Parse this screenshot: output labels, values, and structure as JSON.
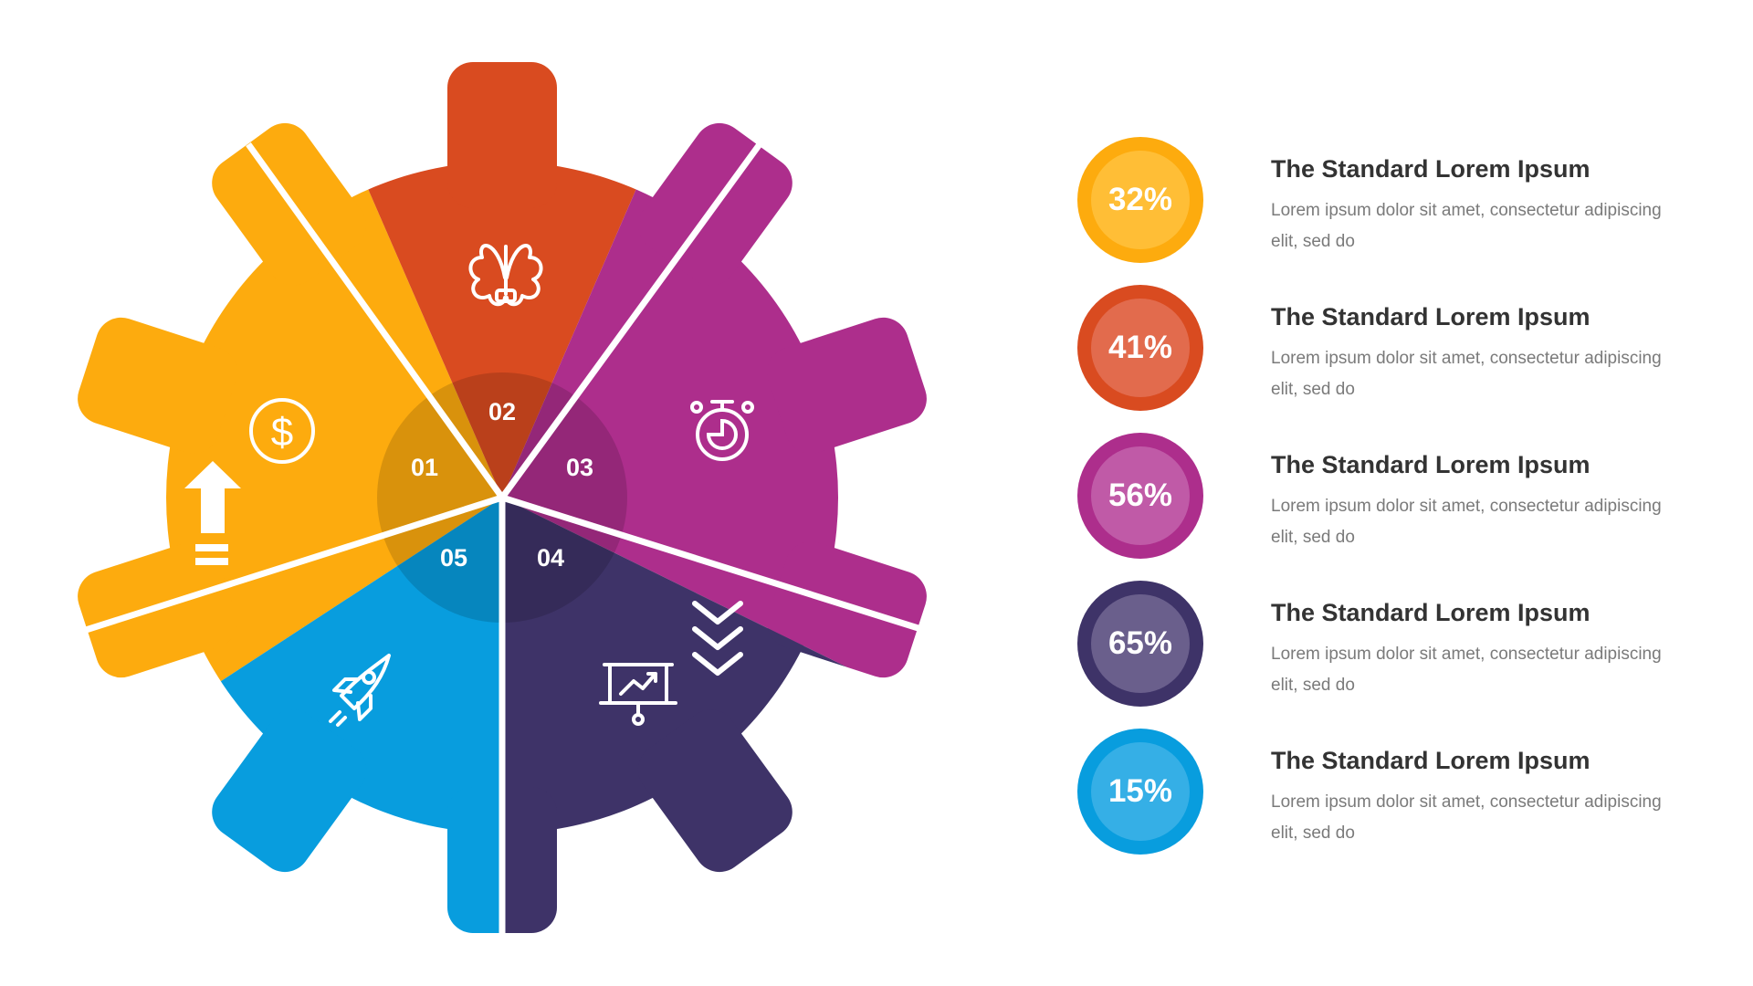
{
  "segments": [
    {
      "number": "01",
      "color": "#FDAB0E",
      "icon": "dollar-icon"
    },
    {
      "number": "02",
      "color": "#D94B20",
      "icon": "brain-icon"
    },
    {
      "number": "03",
      "color": "#AD2E8C",
      "icon": "stopwatch-icon"
    },
    {
      "number": "04",
      "color": "#3E3368",
      "icon": "presentation-chart-icon"
    },
    {
      "number": "05",
      "color": "#089DDE",
      "icon": "rocket-icon"
    }
  ],
  "decorations": {
    "up_arrow_icon": "up-arrow-icon",
    "down_chevrons_icon": "triple-chevron-down-icon"
  },
  "items": [
    {
      "percent": "32%",
      "title": "The Standard Lorem Ipsum",
      "text": "Lorem ipsum dolor sit amet, consectetur adipiscing elit, sed do",
      "color": "#FDAB0E",
      "inner_color": "#FFBE36"
    },
    {
      "percent": "41%",
      "title": "The Standard Lorem Ipsum",
      "text": "Lorem ipsum dolor sit amet, consectetur adipiscing elit, sed do",
      "color": "#D94B20",
      "inner_color": "#E26B4D"
    },
    {
      "percent": "56%",
      "title": "The Standard Lorem Ipsum",
      "text": "Lorem ipsum dolor sit amet, consectetur adipiscing elit, sed do",
      "color": "#AD2E8C",
      "inner_color": "#C05AA7"
    },
    {
      "percent": "65%",
      "title": "The Standard Lorem Ipsum",
      "text": "Lorem ipsum dolor sit amet, consectetur adipiscing elit, sed do",
      "color": "#3E3368",
      "inner_color": "#6A5F8C"
    },
    {
      "percent": "15%",
      "title": "The Standard Lorem Ipsum",
      "text": "Lorem ipsum dolor sit amet, consectetur adipiscing elit, sed do",
      "color": "#089DDE",
      "inner_color": "#35AFE6"
    }
  ]
}
